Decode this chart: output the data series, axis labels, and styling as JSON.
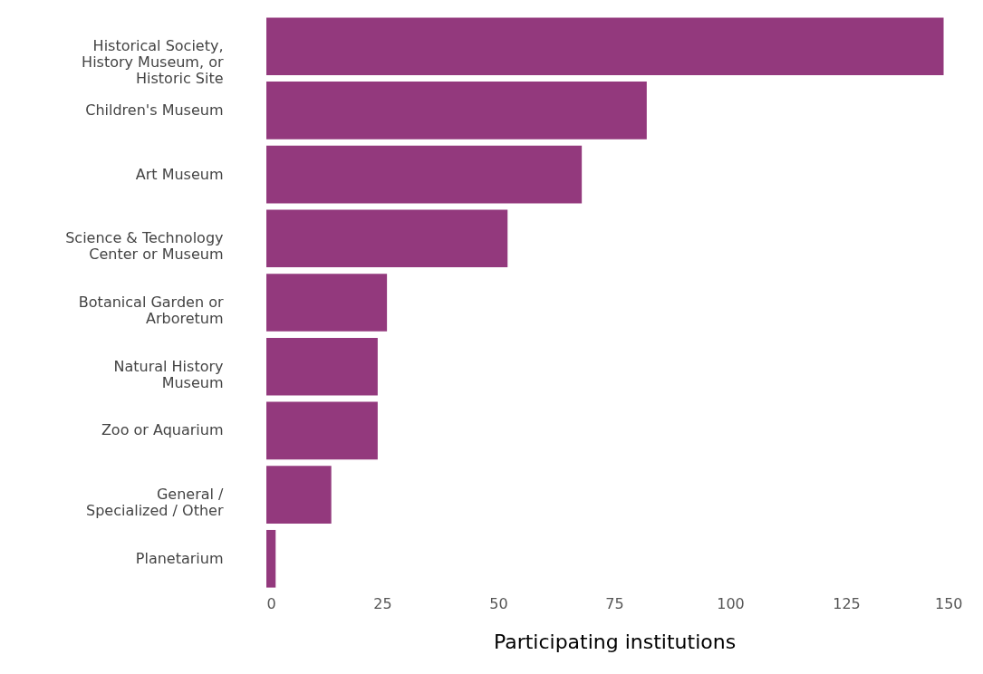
{
  "chart_data": {
    "type": "bar",
    "orientation": "horizontal",
    "xlabel": "Participating institutions",
    "categories": [
      "Historical Society,\nHistory Museum, or\nHistoric Site",
      "Children's Museum",
      "Art Museum",
      "Science & Technology\nCenter or Museum",
      "Botanical Garden or\nArboretum",
      "Natural History\nMuseum",
      "Zoo or Aquarium",
      "General /\nSpecialized / Other",
      "Planetarium"
    ],
    "values": [
      146,
      82,
      68,
      52,
      26,
      24,
      24,
      14,
      2
    ],
    "color": "#93397d",
    "xlim": [
      0,
      150
    ],
    "xticks": [
      0,
      25,
      50,
      75,
      100,
      125,
      150
    ],
    "grid": false
  }
}
